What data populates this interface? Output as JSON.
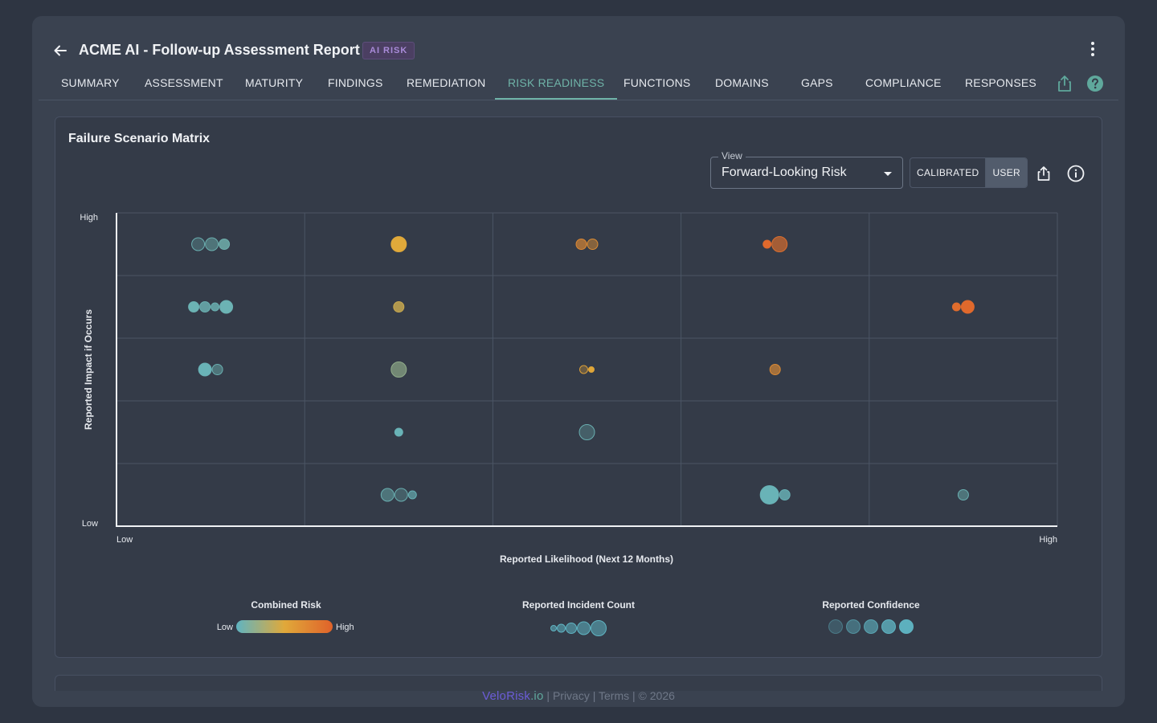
{
  "header": {
    "title": "ACME AI - Follow-up Assessment Report",
    "badge": "AI RISK"
  },
  "tabs": [
    {
      "label": "SUMMARY",
      "active": false
    },
    {
      "label": "ASSESSMENT",
      "active": false
    },
    {
      "label": "MATURITY",
      "active": false
    },
    {
      "label": "FINDINGS",
      "active": false
    },
    {
      "label": "REMEDIATION",
      "active": false
    },
    {
      "label": "RISK READINESS",
      "active": true
    },
    {
      "label": "FUNCTIONS",
      "active": false
    },
    {
      "label": "DOMAINS",
      "active": false
    },
    {
      "label": "GAPS",
      "active": false
    },
    {
      "label": "COMPLIANCE",
      "active": false
    },
    {
      "label": "RESPONSES",
      "active": false
    }
  ],
  "card": {
    "title": "Failure Scenario Matrix",
    "view_label": "View",
    "view_value": "Forward-Looking Risk",
    "toggle": {
      "calibrated": "CALIBRATED",
      "user": "USER",
      "selected": "user"
    }
  },
  "chart_data": {
    "type": "scatter",
    "xlabel": "Reported Likelihood (Next 12 Months)",
    "ylabel": "Reported Impact if Occurs",
    "x_ticks": [
      "Low",
      "High"
    ],
    "y_ticks": [
      "Low",
      "High"
    ],
    "grid_columns": 5,
    "grid_rows": 5,
    "grid": true,
    "points": [
      {
        "col": 1,
        "row": 5,
        "risk": 0.05,
        "count": 3,
        "confidence": 1
      },
      {
        "col": 1,
        "row": 5,
        "risk": 0.06,
        "count": 3,
        "confidence": 2
      },
      {
        "col": 1,
        "row": 5,
        "risk": 0.07,
        "count": 2,
        "confidence": 4
      },
      {
        "col": 2,
        "row": 5,
        "risk": 0.5,
        "count": 4,
        "confidence": 5
      },
      {
        "col": 3,
        "row": 5,
        "risk": 0.72,
        "count": 2,
        "confidence": 3
      },
      {
        "col": 3,
        "row": 5,
        "risk": 0.68,
        "count": 2,
        "confidence": 2
      },
      {
        "col": 4,
        "row": 5,
        "risk": 0.95,
        "count": 1,
        "confidence": 5
      },
      {
        "col": 4,
        "row": 5,
        "risk": 0.9,
        "count": 4,
        "confidence": 3
      },
      {
        "col": 1,
        "row": 4,
        "risk": 0.05,
        "count": 2,
        "confidence": 5
      },
      {
        "col": 1,
        "row": 4,
        "risk": 0.05,
        "count": 2,
        "confidence": 4
      },
      {
        "col": 1,
        "row": 4,
        "risk": 0.05,
        "count": 1,
        "confidence": 4
      },
      {
        "col": 1,
        "row": 4,
        "risk": 0.05,
        "count": 3,
        "confidence": 5
      },
      {
        "col": 2,
        "row": 4,
        "risk": 0.42,
        "count": 2,
        "confidence": 4
      },
      {
        "col": 5,
        "row": 4,
        "risk": 0.92,
        "count": 1,
        "confidence": 5
      },
      {
        "col": 5,
        "row": 4,
        "risk": 0.95,
        "count": 3,
        "confidence": 5
      },
      {
        "col": 1,
        "row": 3,
        "risk": 0.04,
        "count": 3,
        "confidence": 5
      },
      {
        "col": 1,
        "row": 3,
        "risk": 0.05,
        "count": 2,
        "confidence": 2
      },
      {
        "col": 2,
        "row": 3,
        "risk": 0.2,
        "count": 4,
        "confidence": 3
      },
      {
        "col": 3,
        "row": 3,
        "risk": 0.55,
        "count": 1,
        "confidence": 1
      },
      {
        "col": 3,
        "row": 3,
        "risk": 0.52,
        "count": 0,
        "confidence": 5
      },
      {
        "col": 4,
        "row": 3,
        "risk": 0.7,
        "count": 2,
        "confidence": 3
      },
      {
        "col": 2,
        "row": 2,
        "risk": 0.04,
        "count": 1,
        "confidence": 5
      },
      {
        "col": 3,
        "row": 2,
        "risk": 0.05,
        "count": 4,
        "confidence": 1
      },
      {
        "col": 2,
        "row": 1,
        "risk": 0.05,
        "count": 3,
        "confidence": 2
      },
      {
        "col": 2,
        "row": 1,
        "risk": 0.05,
        "count": 3,
        "confidence": 1
      },
      {
        "col": 2,
        "row": 1,
        "risk": 0.04,
        "count": 1,
        "confidence": 3
      },
      {
        "col": 4,
        "row": 1,
        "risk": 0.04,
        "count": 5,
        "confidence": 5
      },
      {
        "col": 4,
        "row": 1,
        "risk": 0.04,
        "count": 2,
        "confidence": 4
      },
      {
        "col": 5,
        "row": 1,
        "risk": 0.05,
        "count": 2,
        "confidence": 2
      }
    ]
  },
  "legend": {
    "combined_risk": {
      "title": "Combined Risk",
      "low": "Low",
      "high": "High"
    },
    "incident_count": {
      "title": "Reported Incident Count",
      "steps": 5
    },
    "confidence": {
      "title": "Reported Confidence",
      "steps": 5
    }
  },
  "colors": {
    "accent": "#6fb3a8",
    "risk_low": "#5fb4c2",
    "risk_mid": "#e0a93a",
    "risk_high": "#e0622a"
  },
  "footer": {
    "brand": "VeloRisk",
    "brand_tld": ".io",
    "sep1": " | ",
    "privacy": "Privacy",
    "sep2": " | ",
    "terms": "Terms",
    "copyright": " | © 2026"
  }
}
